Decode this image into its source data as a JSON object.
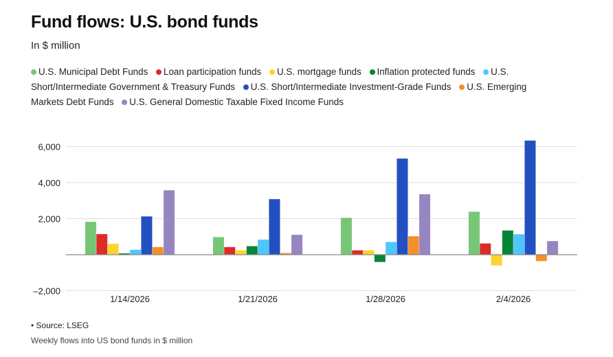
{
  "chart_data": {
    "type": "bar",
    "title": "Fund flows: U.S. bond funds",
    "subtitle": "In $ million",
    "xlabel": "",
    "ylabel": "",
    "ylim": [
      -2000,
      6500
    ],
    "yticks": [
      -2000,
      0,
      2000,
      4000,
      6000
    ],
    "ytick_labels": [
      "–2,000",
      "",
      "2,000",
      "4,000",
      "6,000"
    ],
    "grid": true,
    "legend_placement": "top",
    "categories": [
      "1/14/2026",
      "1/21/2026",
      "1/28/2026",
      "2/4/2026"
    ],
    "series": [
      {
        "name": "U.S. Municipal Debt Funds",
        "color": "#77c577",
        "values": [
          1830,
          980,
          2050,
          2390
        ]
      },
      {
        "name": "Loan participation funds",
        "color": "#dc2c28",
        "values": [
          1150,
          430,
          250,
          630
        ]
      },
      {
        "name": "U.S. mortgage funds",
        "color": "#fdd32f",
        "values": [
          610,
          250,
          250,
          -600
        ]
      },
      {
        "name": "Inflation protected funds",
        "color": "#068438",
        "values": [
          80,
          480,
          -410,
          1350
        ]
      },
      {
        "name": "U.S. Short/Intermediate Government & Treasury Funds",
        "color": "#4fc6fd",
        "values": [
          280,
          840,
          710,
          1140
        ]
      },
      {
        "name": "U.S. Short/Intermediate Investment-Grade Funds",
        "color": "#2350c1",
        "values": [
          2130,
          3090,
          5340,
          6340
        ]
      },
      {
        "name": "U.S. Emerging Markets Debt Funds",
        "color": "#f58f28",
        "values": [
          430,
          100,
          1030,
          -360
        ]
      },
      {
        "name": "U.S. General Domestic Taxable Fixed Income Funds",
        "color": "#9785c2",
        "values": [
          3580,
          1110,
          3360,
          760
        ]
      }
    ]
  },
  "footer": {
    "source": "• Source: LSEG",
    "note": "Weekly flows into US bond funds in $ million"
  }
}
